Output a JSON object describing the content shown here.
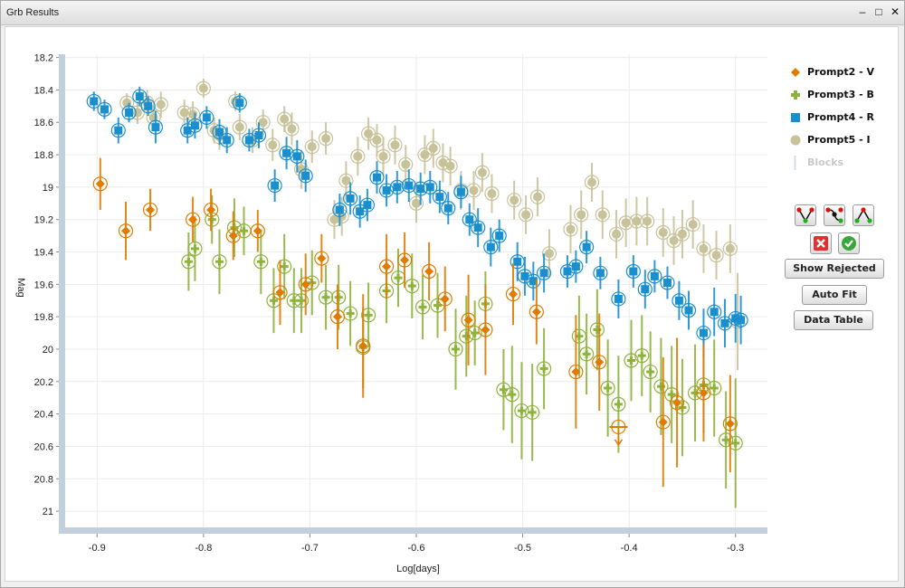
{
  "window": {
    "title": "Grb Results"
  },
  "colors": {
    "V": "#e07b00",
    "B": "#8db33a",
    "R": "#1a8fd0",
    "I": "#c8c29a",
    "axis": "#c3cfdc"
  },
  "legend": [
    {
      "label": "Prompt2 - V",
      "icon": "diamond-icon",
      "color": "#e07b00"
    },
    {
      "label": "Prompt3 - B",
      "icon": "plus-icon",
      "color": "#8db33a"
    },
    {
      "label": "Prompt4 - R",
      "icon": "square-icon",
      "color": "#1a8fd0"
    },
    {
      "label": "Prompt5 - I",
      "icon": "circle-icon",
      "color": "#c8c29a"
    },
    {
      "label": "Blocks",
      "icon": "line-icon",
      "color": "#c8c8c8"
    }
  ],
  "buttons": {
    "show_rejected": "Show Rejected",
    "auto_fit": "Auto Fit",
    "data_table": "Data Table"
  },
  "chart_data": {
    "type": "scatter",
    "xlabel": "Log[days]",
    "ylabel": "Mag",
    "xlim": [
      -0.93,
      -0.27
    ],
    "ylim": [
      21.1,
      18.18
    ],
    "y_inverted": true,
    "xticks": [
      "-0.9",
      "-0.8",
      "-0.7",
      "-0.6",
      "-0.5",
      "-0.4",
      "-0.3"
    ],
    "yticks": [
      "18.2",
      "18.4",
      "18.6",
      "18.8",
      "19",
      "19.2",
      "19.4",
      "19.6",
      "19.8",
      "20",
      "20.2",
      "20.4",
      "20.6",
      "20.8",
      "21"
    ],
    "grid": true,
    "legend_position": "right",
    "series": [
      {
        "name": "Prompt2 - V",
        "marker": "diamond",
        "color": "#e07b00",
        "points": [
          [
            -0.897,
            18.98,
            0.16
          ],
          [
            -0.873,
            19.27,
            0.18
          ],
          [
            -0.85,
            19.14,
            0.13
          ],
          [
            -0.81,
            19.2,
            0.14
          ],
          [
            -0.793,
            19.14,
            0.13
          ],
          [
            -0.772,
            19.3,
            0.15
          ],
          [
            -0.749,
            19.27,
            0.13
          ],
          [
            -0.728,
            19.65,
            0.2
          ],
          [
            -0.704,
            19.6,
            0.19
          ],
          [
            -0.689,
            19.44,
            0.15
          ],
          [
            -0.674,
            19.8,
            0.2
          ],
          [
            -0.65,
            19.98,
            0.32
          ],
          [
            -0.628,
            19.49,
            0.2
          ],
          [
            -0.611,
            19.45,
            0.17
          ],
          [
            -0.588,
            19.52,
            0.18
          ],
          [
            -0.573,
            19.69,
            0.2
          ],
          [
            -0.551,
            19.82,
            0.28
          ],
          [
            -0.535,
            19.88,
            0.28
          ],
          [
            -0.509,
            19.66,
            0.19
          ],
          [
            -0.487,
            19.77,
            0.2
          ],
          [
            -0.45,
            20.14,
            0.35
          ],
          [
            -0.428,
            20.08,
            0.3
          ],
          [
            -0.368,
            20.45,
            0.4
          ],
          [
            -0.355,
            20.33,
            0.4
          ],
          [
            -0.33,
            20.27,
            0.3
          ],
          [
            -0.305,
            20.46,
            0.3
          ]
        ]
      },
      {
        "name": "Prompt3 - B",
        "marker": "plus",
        "color": "#8db33a",
        "points": [
          [
            -0.814,
            19.46,
            0.18
          ],
          [
            -0.808,
            19.38,
            0.2
          ],
          [
            -0.792,
            19.2,
            0.15
          ],
          [
            -0.785,
            19.46,
            0.2
          ],
          [
            -0.771,
            19.25,
            0.18
          ],
          [
            -0.762,
            19.27,
            0.15
          ],
          [
            -0.746,
            19.46,
            0.2
          ],
          [
            -0.734,
            19.7,
            0.2
          ],
          [
            -0.724,
            19.49,
            0.2
          ],
          [
            -0.715,
            19.7,
            0.2
          ],
          [
            -0.708,
            19.7,
            0.2
          ],
          [
            -0.698,
            19.59,
            0.2
          ],
          [
            -0.685,
            19.68,
            0.2
          ],
          [
            -0.673,
            19.68,
            0.2
          ],
          [
            -0.662,
            19.78,
            0.2
          ],
          [
            -0.65,
            19.99,
            0.25
          ],
          [
            -0.645,
            19.79,
            0.2
          ],
          [
            -0.628,
            19.64,
            0.2
          ],
          [
            -0.617,
            19.56,
            0.18
          ],
          [
            -0.604,
            19.61,
            0.2
          ],
          [
            -0.594,
            19.74,
            0.2
          ],
          [
            -0.58,
            19.73,
            0.2
          ],
          [
            -0.563,
            20.0,
            0.25
          ],
          [
            -0.553,
            19.92,
            0.25
          ],
          [
            -0.545,
            19.9,
            0.2
          ],
          [
            -0.535,
            19.72,
            0.2
          ],
          [
            -0.518,
            20.25,
            0.25
          ],
          [
            -0.51,
            20.28,
            0.3
          ],
          [
            -0.501,
            20.38,
            0.3
          ],
          [
            -0.491,
            20.39,
            0.3
          ],
          [
            -0.48,
            20.12,
            0.25
          ],
          [
            -0.447,
            19.92,
            0.25
          ],
          [
            -0.44,
            20.03,
            0.25
          ],
          [
            -0.43,
            19.88,
            0.25
          ],
          [
            -0.42,
            20.24,
            0.3
          ],
          [
            -0.41,
            20.34,
            0.3
          ],
          [
            -0.398,
            20.07,
            0.25
          ],
          [
            -0.388,
            20.04,
            0.25
          ],
          [
            -0.38,
            20.14,
            0.25
          ],
          [
            -0.37,
            20.23,
            0.3
          ],
          [
            -0.36,
            20.28,
            0.3
          ],
          [
            -0.35,
            20.36,
            0.3
          ],
          [
            -0.338,
            20.27,
            0.3
          ],
          [
            -0.33,
            20.22,
            0.3
          ],
          [
            -0.32,
            20.24,
            0.3
          ],
          [
            -0.309,
            20.56,
            0.3
          ],
          [
            -0.3,
            20.58,
            0.4
          ]
        ]
      },
      {
        "name": "Prompt4 - R",
        "marker": "square",
        "color": "#1a8fd0",
        "points": [
          [
            -0.903,
            18.47,
            0.06
          ],
          [
            -0.893,
            18.52,
            0.06
          ],
          [
            -0.88,
            18.65,
            0.08
          ],
          [
            -0.87,
            18.54,
            0.06
          ],
          [
            -0.86,
            18.44,
            0.06
          ],
          [
            -0.852,
            18.5,
            0.06
          ],
          [
            -0.845,
            18.63,
            0.1
          ],
          [
            -0.815,
            18.65,
            0.08
          ],
          [
            -0.808,
            18.62,
            0.08
          ],
          [
            -0.797,
            18.57,
            0.07
          ],
          [
            -0.785,
            18.66,
            0.08
          ],
          [
            -0.778,
            18.71,
            0.08
          ],
          [
            -0.766,
            18.48,
            0.06
          ],
          [
            -0.757,
            18.71,
            0.07
          ],
          [
            -0.748,
            18.68,
            0.08
          ],
          [
            -0.733,
            18.99,
            0.1
          ],
          [
            -0.722,
            18.79,
            0.1
          ],
          [
            -0.712,
            18.81,
            0.1
          ],
          [
            -0.704,
            18.93,
            0.1
          ],
          [
            -0.672,
            19.14,
            0.1
          ],
          [
            -0.662,
            19.07,
            0.1
          ],
          [
            -0.653,
            19.15,
            0.1
          ],
          [
            -0.646,
            19.11,
            0.1
          ],
          [
            -0.637,
            18.94,
            0.1
          ],
          [
            -0.628,
            19.02,
            0.1
          ],
          [
            -0.618,
            19.0,
            0.1
          ],
          [
            -0.607,
            18.99,
            0.1
          ],
          [
            -0.596,
            19.01,
            0.1
          ],
          [
            -0.587,
            19.0,
            0.1
          ],
          [
            -0.578,
            19.06,
            0.1
          ],
          [
            -0.57,
            19.13,
            0.1
          ],
          [
            -0.558,
            19.03,
            0.1
          ],
          [
            -0.55,
            19.2,
            0.1
          ],
          [
            -0.542,
            19.25,
            0.12
          ],
          [
            -0.53,
            19.37,
            0.12
          ],
          [
            -0.522,
            19.3,
            0.1
          ],
          [
            -0.505,
            19.46,
            0.12
          ],
          [
            -0.498,
            19.55,
            0.12
          ],
          [
            -0.49,
            19.58,
            0.12
          ],
          [
            -0.48,
            19.53,
            0.12
          ],
          [
            -0.458,
            19.52,
            0.1
          ],
          [
            -0.45,
            19.49,
            0.1
          ],
          [
            -0.44,
            19.37,
            0.1
          ],
          [
            -0.427,
            19.53,
            0.1
          ],
          [
            -0.41,
            19.69,
            0.12
          ],
          [
            -0.396,
            19.52,
            0.1
          ],
          [
            -0.385,
            19.63,
            0.12
          ],
          [
            -0.376,
            19.55,
            0.1
          ],
          [
            -0.364,
            19.59,
            0.1
          ],
          [
            -0.353,
            19.7,
            0.12
          ],
          [
            -0.344,
            19.76,
            0.12
          ],
          [
            -0.33,
            19.9,
            0.15
          ],
          [
            -0.32,
            19.77,
            0.15
          ],
          [
            -0.31,
            19.84,
            0.15
          ],
          [
            -0.3,
            19.81,
            0.15
          ],
          [
            -0.295,
            19.82,
            0.15
          ]
        ]
      },
      {
        "name": "Prompt5 - I",
        "marker": "circle",
        "color": "#c8c29a",
        "points": [
          [
            -0.872,
            18.48,
            0.06
          ],
          [
            -0.862,
            18.54,
            0.07
          ],
          [
            -0.853,
            18.48,
            0.08
          ],
          [
            -0.847,
            18.57,
            0.08
          ],
          [
            -0.84,
            18.49,
            0.08
          ],
          [
            -0.818,
            18.54,
            0.08
          ],
          [
            -0.81,
            18.55,
            0.08
          ],
          [
            -0.8,
            18.39,
            0.06
          ],
          [
            -0.79,
            18.65,
            0.08
          ],
          [
            -0.785,
            18.69,
            0.08
          ],
          [
            -0.77,
            18.47,
            0.06
          ],
          [
            -0.766,
            18.63,
            0.08
          ],
          [
            -0.754,
            18.71,
            0.08
          ],
          [
            -0.744,
            18.6,
            0.08
          ],
          [
            -0.735,
            18.74,
            0.1
          ],
          [
            -0.724,
            18.58,
            0.08
          ],
          [
            -0.717,
            18.64,
            0.1
          ],
          [
            -0.708,
            18.89,
            0.12
          ],
          [
            -0.698,
            18.75,
            0.1
          ],
          [
            -0.685,
            18.7,
            0.1
          ],
          [
            -0.677,
            19.2,
            0.12
          ],
          [
            -0.67,
            19.18,
            0.12
          ],
          [
            -0.666,
            18.96,
            0.12
          ],
          [
            -0.655,
            18.81,
            0.12
          ],
          [
            -0.645,
            18.67,
            0.1
          ],
          [
            -0.637,
            18.71,
            0.1
          ],
          [
            -0.631,
            18.81,
            0.12
          ],
          [
            -0.62,
            18.74,
            0.12
          ],
          [
            -0.61,
            18.86,
            0.12
          ],
          [
            -0.6,
            19.1,
            0.12
          ],
          [
            -0.592,
            18.8,
            0.12
          ],
          [
            -0.584,
            18.76,
            0.12
          ],
          [
            -0.575,
            18.85,
            0.12
          ],
          [
            -0.568,
            18.87,
            0.12
          ],
          [
            -0.558,
            19.02,
            0.12
          ],
          [
            -0.546,
            19.02,
            0.12
          ],
          [
            -0.538,
            18.91,
            0.12
          ],
          [
            -0.529,
            19.04,
            0.12
          ],
          [
            -0.508,
            19.08,
            0.12
          ],
          [
            -0.497,
            19.17,
            0.12
          ],
          [
            -0.486,
            19.06,
            0.12
          ],
          [
            -0.475,
            19.41,
            0.15
          ],
          [
            -0.455,
            19.26,
            0.15
          ],
          [
            -0.445,
            19.17,
            0.15
          ],
          [
            -0.435,
            18.97,
            0.12
          ],
          [
            -0.425,
            19.17,
            0.15
          ],
          [
            -0.412,
            19.29,
            0.15
          ],
          [
            -0.403,
            19.22,
            0.15
          ],
          [
            -0.393,
            19.21,
            0.15
          ],
          [
            -0.383,
            19.21,
            0.15
          ],
          [
            -0.368,
            19.28,
            0.15
          ],
          [
            -0.358,
            19.33,
            0.15
          ],
          [
            -0.35,
            19.29,
            0.15
          ],
          [
            -0.34,
            19.23,
            0.15
          ],
          [
            -0.33,
            19.38,
            0.15
          ],
          [
            -0.318,
            19.42,
            0.15
          ],
          [
            -0.305,
            19.38,
            0.15
          ],
          [
            -0.298,
            19.83,
            0.3
          ]
        ]
      }
    ],
    "upper_limits": [
      {
        "series": "Prompt2 - V",
        "x": -0.41,
        "y": 20.48
      }
    ]
  }
}
